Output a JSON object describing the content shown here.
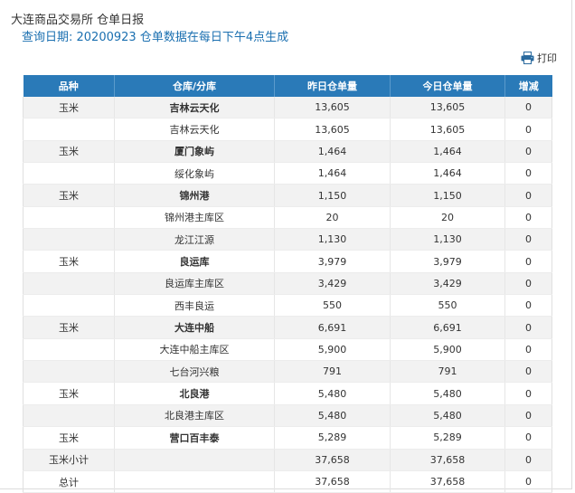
{
  "header": {
    "title": "大连商品交易所 仓单日报",
    "subtitle": "查询日期: 20200923 仓单数据在每日下午4点生成"
  },
  "toolbar": {
    "print_label": "打印",
    "print_icon": "printer-icon"
  },
  "table": {
    "columns": [
      "品种",
      "仓库/分库",
      "昨日仓单量",
      "今日仓单量",
      "增减"
    ],
    "rows": [
      {
        "variety": "玉米",
        "warehouse": "吉林云天化",
        "yesterday": "13,605",
        "today": "13,605",
        "change": "0",
        "main": true
      },
      {
        "variety": "",
        "warehouse": "吉林云天化",
        "yesterday": "13,605",
        "today": "13,605",
        "change": "0",
        "main": false
      },
      {
        "variety": "玉米",
        "warehouse": "厦门象屿",
        "yesterday": "1,464",
        "today": "1,464",
        "change": "0",
        "main": true
      },
      {
        "variety": "",
        "warehouse": "绥化象屿",
        "yesterday": "1,464",
        "today": "1,464",
        "change": "0",
        "main": false
      },
      {
        "variety": "玉米",
        "warehouse": "锦州港",
        "yesterday": "1,150",
        "today": "1,150",
        "change": "0",
        "main": true
      },
      {
        "variety": "",
        "warehouse": "锦州港主库区",
        "yesterday": "20",
        "today": "20",
        "change": "0",
        "main": false
      },
      {
        "variety": "",
        "warehouse": "龙江江源",
        "yesterday": "1,130",
        "today": "1,130",
        "change": "0",
        "main": false
      },
      {
        "variety": "玉米",
        "warehouse": "良运库",
        "yesterday": "3,979",
        "today": "3,979",
        "change": "0",
        "main": true
      },
      {
        "variety": "",
        "warehouse": "良运库主库区",
        "yesterday": "3,429",
        "today": "3,429",
        "change": "0",
        "main": false
      },
      {
        "variety": "",
        "warehouse": "西丰良运",
        "yesterday": "550",
        "today": "550",
        "change": "0",
        "main": false
      },
      {
        "variety": "玉米",
        "warehouse": "大连中船",
        "yesterday": "6,691",
        "today": "6,691",
        "change": "0",
        "main": true
      },
      {
        "variety": "",
        "warehouse": "大连中船主库区",
        "yesterday": "5,900",
        "today": "5,900",
        "change": "0",
        "main": false
      },
      {
        "variety": "",
        "warehouse": "七台河兴粮",
        "yesterday": "791",
        "today": "791",
        "change": "0",
        "main": false
      },
      {
        "variety": "玉米",
        "warehouse": "北良港",
        "yesterday": "5,480",
        "today": "5,480",
        "change": "0",
        "main": true
      },
      {
        "variety": "",
        "warehouse": "北良港主库区",
        "yesterday": "5,480",
        "today": "5,480",
        "change": "0",
        "main": false
      },
      {
        "variety": "玉米",
        "warehouse": "营口百丰泰",
        "yesterday": "5,289",
        "today": "5,289",
        "change": "0",
        "main": true
      },
      {
        "variety": "玉米小计",
        "warehouse": "",
        "yesterday": "37,658",
        "today": "37,658",
        "change": "0",
        "main": false
      },
      {
        "variety": "总计",
        "warehouse": "",
        "yesterday": "37,658",
        "today": "37,658",
        "change": "0",
        "main": false
      }
    ]
  },
  "colors": {
    "header_bg": "#2a7ab8",
    "subtitle": "#1a6fb0",
    "row_alt": "#f2f2f2"
  }
}
